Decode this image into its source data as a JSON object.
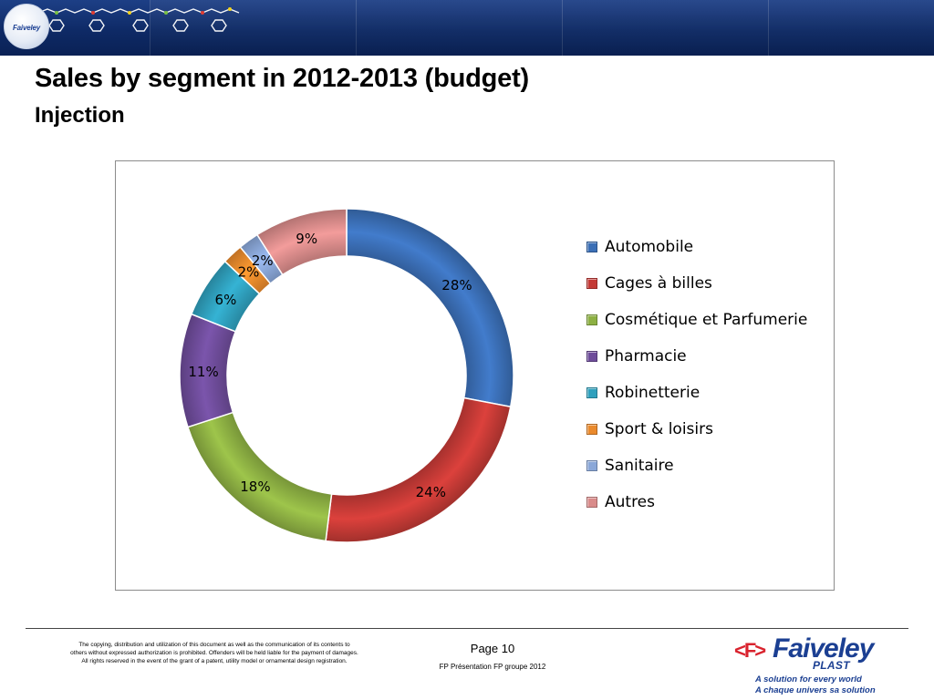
{
  "header": {
    "banner_logo_text": "Faiveley",
    "title": "Sales by segment in 2012-2013 (budget)",
    "subtitle": "Injection"
  },
  "chart_data": {
    "type": "pie",
    "style": "doughnut",
    "title": "",
    "legend_position": "right",
    "series": [
      {
        "name": "Automobile",
        "value": 28,
        "label": "28%",
        "color": "#3b6fb6"
      },
      {
        "name": "Cages à billes",
        "value": 24,
        "label": "24%",
        "color": "#c43a36"
      },
      {
        "name": "Cosmétique et Parfumerie",
        "value": 18,
        "label": "18%",
        "color": "#8db043"
      },
      {
        "name": "Pharmacie",
        "value": 11,
        "label": "11%",
        "color": "#6e4c9a"
      },
      {
        "name": "Robinetterie",
        "value": 6,
        "label": "6%",
        "color": "#2fa0bd"
      },
      {
        "name": "Sport & loisirs",
        "value": 2,
        "label": "2%",
        "color": "#ea8a2c"
      },
      {
        "name": "Sanitaire",
        "value": 2,
        "label": "2%",
        "color": "#8aa7d8"
      },
      {
        "name": "Autres",
        "value": 9,
        "label": "9%",
        "color": "#d98b8a"
      }
    ]
  },
  "footer": {
    "copyright_line1": "The copying, distribution and utilization of this document as well as the communication of its contents to",
    "copyright_line2": "others without  expressed authorization is prohibited. Offenders will be held liable for the payment of damages.",
    "copyright_line3": "All rights reserved in the event of the grant of a patent, utility model or ornamental design registration.",
    "page_label": "Page 10",
    "presentation_label": "FP Présentation FP groupe 2012",
    "brand_mark": "<F>",
    "brand_name": "Faiveley",
    "brand_sub": "PLAST",
    "slogan_en": "A solution for every world",
    "slogan_fr": "A chaque univers sa solution"
  }
}
